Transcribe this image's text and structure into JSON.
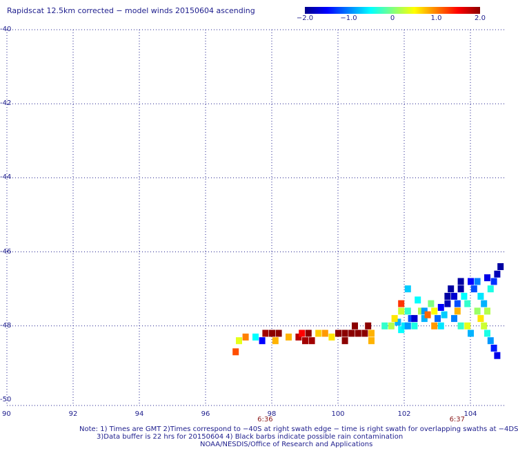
{
  "title": "Rapidscat 12.5km corrected − model winds 20150604 ascending",
  "colorbar": {
    "labels": [
      "−2.0",
      "−1.0",
      "0",
      "1.0",
      "2.0"
    ],
    "values": [
      -2.0,
      -1.0,
      0,
      1.0,
      2.0
    ],
    "range": [
      -2.0,
      2.0
    ],
    "colors": [
      "#00008b",
      "#0000ff",
      "#0080ff",
      "#00ffff",
      "#80ff80",
      "#ffff00",
      "#ff8000",
      "#ff0000",
      "#8b0000"
    ]
  },
  "map": {
    "lon_range": [
      90,
      105
    ],
    "lat_range": [
      -50,
      -40
    ],
    "lon_ticks": [
      "90",
      "92",
      "94",
      "96",
      "98",
      "100",
      "102",
      "104"
    ],
    "lat_ticks": [
      "-40",
      "-42",
      "-44",
      "-46",
      "-48",
      "-50"
    ],
    "grid": "dotted",
    "times": [
      {
        "label": "6:36",
        "lon": 97.8
      },
      {
        "label": "6:37",
        "lon": 103.6
      }
    ]
  },
  "notes": [
    "Note: 1) Times are GMT 2)Times correspond to −40S at right swath edge − time is right swath for overlapping swaths at −4DS",
    "3)Data buffer is 22 hrs for 20150604 4) Black barbs indicate possible rain contamination",
    "NOAA/NESDIS/Office of Research and Applications"
  ],
  "chart_data": {
    "type": "heatmap",
    "title": "Rapidscat 12.5km corrected − model winds 20150604 ascending",
    "xlabel": "",
    "ylabel": "",
    "xlim": [
      90,
      105
    ],
    "ylim": [
      -50,
      -40
    ],
    "units_note": "cell values are corrected-minus-model wind differences, color scale -2.0 to 2.0",
    "cells": [
      [
        96.9,
        -48.7,
        1.2
      ],
      [
        97.0,
        -48.4,
        0.4
      ],
      [
        97.2,
        -48.3,
        1.0
      ],
      [
        97.5,
        -48.3,
        -0.5
      ],
      [
        97.7,
        -48.4,
        -1.5
      ],
      [
        97.8,
        -48.2,
        1.9
      ],
      [
        98.0,
        -48.2,
        2.0
      ],
      [
        98.2,
        -48.2,
        2.0
      ],
      [
        98.1,
        -48.4,
        0.8
      ],
      [
        98.5,
        -48.3,
        0.8
      ],
      [
        98.8,
        -48.3,
        1.8
      ],
      [
        98.9,
        -48.2,
        1.5
      ],
      [
        99.1,
        -48.2,
        2.0
      ],
      [
        99.0,
        -48.4,
        1.9
      ],
      [
        99.2,
        -48.4,
        1.9
      ],
      [
        99.4,
        -48.2,
        0.7
      ],
      [
        99.6,
        -48.2,
        0.9
      ],
      [
        99.8,
        -48.3,
        0.6
      ],
      [
        100.0,
        -48.2,
        2.0
      ],
      [
        100.2,
        -48.2,
        2.0
      ],
      [
        100.2,
        -48.4,
        2.0
      ],
      [
        100.4,
        -48.2,
        2.0
      ],
      [
        100.5,
        -48.0,
        2.0
      ],
      [
        100.6,
        -48.2,
        2.0
      ],
      [
        100.8,
        -48.2,
        2.0
      ],
      [
        100.9,
        -48.0,
        2.0
      ],
      [
        101.0,
        -48.2,
        0.8
      ],
      [
        101.0,
        -48.4,
        0.8
      ],
      [
        101.4,
        -48.0,
        -0.3
      ],
      [
        101.6,
        -48.0,
        0.2
      ],
      [
        101.8,
        -47.9,
        -0.8
      ],
      [
        101.9,
        -48.1,
        -0.5
      ],
      [
        102.0,
        -48.0,
        -0.6
      ],
      [
        101.7,
        -47.8,
        0.6
      ],
      [
        101.9,
        -47.6,
        0.3
      ],
      [
        101.9,
        -47.4,
        1.3
      ],
      [
        102.1,
        -47.6,
        -0.3
      ],
      [
        102.2,
        -47.8,
        -1.2
      ],
      [
        102.1,
        -48.0,
        -0.9
      ],
      [
        102.3,
        -48.0,
        -0.4
      ],
      [
        102.3,
        -47.8,
        -1.7
      ],
      [
        102.5,
        -47.6,
        0.2
      ],
      [
        102.6,
        -47.8,
        -0.8
      ],
      [
        102.6,
        -47.6,
        -0.9
      ],
      [
        102.7,
        -47.7,
        1.1
      ],
      [
        102.8,
        -47.4,
        0.0
      ],
      [
        102.9,
        -47.6,
        0.5
      ],
      [
        103.0,
        -47.8,
        -1.1
      ],
      [
        103.1,
        -47.5,
        -1.5
      ],
      [
        103.2,
        -47.7,
        -0.7
      ],
      [
        103.3,
        -47.4,
        -1.8
      ],
      [
        103.3,
        -47.2,
        -1.9
      ],
      [
        103.4,
        -47.0,
        -1.9
      ],
      [
        103.5,
        -47.2,
        -1.7
      ],
      [
        103.6,
        -47.4,
        -1.2
      ],
      [
        103.7,
        -47.0,
        -1.9
      ],
      [
        103.7,
        -46.8,
        -1.9
      ],
      [
        103.8,
        -47.2,
        -0.5
      ],
      [
        103.9,
        -47.4,
        -0.3
      ],
      [
        104.0,
        -46.8,
        -1.5
      ],
      [
        104.1,
        -47.0,
        -1.2
      ],
      [
        104.2,
        -46.8,
        -1.0
      ],
      [
        104.3,
        -47.2,
        -0.6
      ],
      [
        104.4,
        -47.4,
        -0.8
      ],
      [
        104.5,
        -46.7,
        -1.6
      ],
      [
        104.6,
        -47.0,
        -0.4
      ],
      [
        104.7,
        -46.8,
        -1.3
      ],
      [
        104.8,
        -46.6,
        -1.8
      ],
      [
        104.9,
        -46.4,
        -1.9
      ],
      [
        104.2,
        -47.6,
        0.1
      ],
      [
        104.3,
        -47.8,
        0.6
      ],
      [
        104.4,
        -48.0,
        0.3
      ],
      [
        104.5,
        -48.2,
        -0.4
      ],
      [
        104.6,
        -48.4,
        -0.9
      ],
      [
        104.7,
        -48.6,
        -1.4
      ],
      [
        104.8,
        -48.8,
        -1.6
      ],
      [
        103.5,
        -47.8,
        -1.0
      ],
      [
        103.7,
        -48.0,
        -0.3
      ],
      [
        103.9,
        -48.0,
        0.4
      ],
      [
        104.0,
        -48.2,
        -0.8
      ],
      [
        102.1,
        -47.0,
        -0.7
      ],
      [
        102.9,
        -48.0,
        0.9
      ],
      [
        103.1,
        -48.0,
        -0.6
      ],
      [
        102.4,
        -47.3,
        -0.5
      ],
      [
        103.6,
        -47.6,
        0.8
      ],
      [
        104.5,
        -47.6,
        0.2
      ]
    ]
  }
}
